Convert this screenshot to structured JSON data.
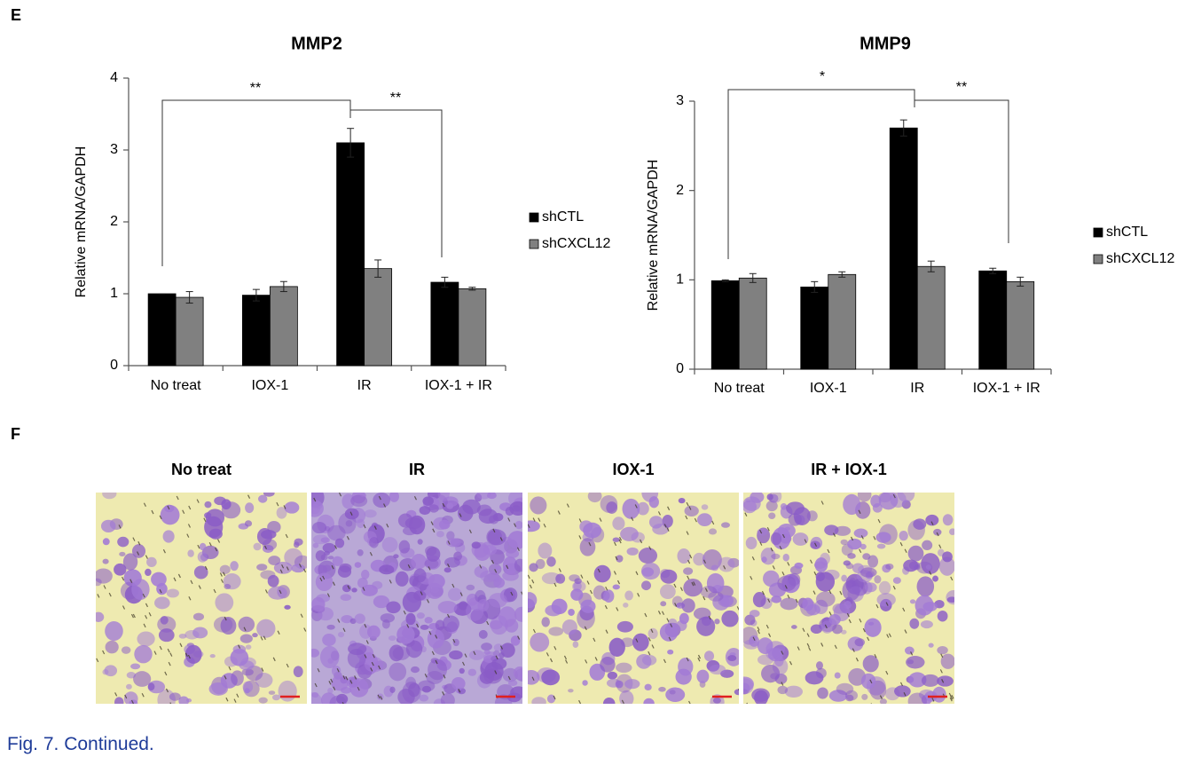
{
  "panel_labels": [
    "E",
    "F"
  ],
  "chart_data": [
    {
      "type": "bar",
      "title": "MMP2",
      "y_label": "Relative mRNA/GAPDH",
      "categories": [
        "No treat",
        "IOX-1",
        "IR",
        "IOX-1 + IR"
      ],
      "series": [
        {
          "name": "shCTL",
          "color": "#000000",
          "values": [
            1.0,
            0.98,
            3.1,
            1.16
          ],
          "errors": [
            0,
            0.08,
            0.2,
            0.07
          ]
        },
        {
          "name": "shCXCL12",
          "color": "#808080",
          "values": [
            0.95,
            1.1,
            1.35,
            1.07
          ],
          "errors": [
            0.08,
            0.07,
            0.12,
            0.02
          ]
        }
      ],
      "ylim": [
        0,
        4
      ],
      "yticks": [
        0,
        1,
        2,
        3,
        4
      ],
      "annotations": [
        "**",
        "**"
      ]
    },
    {
      "type": "bar",
      "title": "MMP9",
      "y_label": "Relative mRNA/GAPDH",
      "categories": [
        "No treat",
        "IOX-1",
        "IR",
        "IOX-1 + IR"
      ],
      "series": [
        {
          "name": "shCTL",
          "color": "#000000",
          "values": [
            0.99,
            0.92,
            2.7,
            1.1
          ],
          "errors": [
            0.01,
            0.06,
            0.09,
            0.03
          ]
        },
        {
          "name": "shCXCL12",
          "color": "#808080",
          "values": [
            1.02,
            1.06,
            1.15,
            0.98
          ],
          "errors": [
            0.05,
            0.03,
            0.06,
            0.05
          ]
        }
      ],
      "ylim": [
        0,
        3
      ],
      "yticks": [
        0,
        1,
        2,
        3
      ],
      "annotations": [
        "*",
        "**"
      ]
    }
  ],
  "images": {
    "titles": [
      "No treat",
      "IR",
      "IOX-1",
      "IR + IOX-1"
    ]
  },
  "caption": "Fig. 7. Continued."
}
